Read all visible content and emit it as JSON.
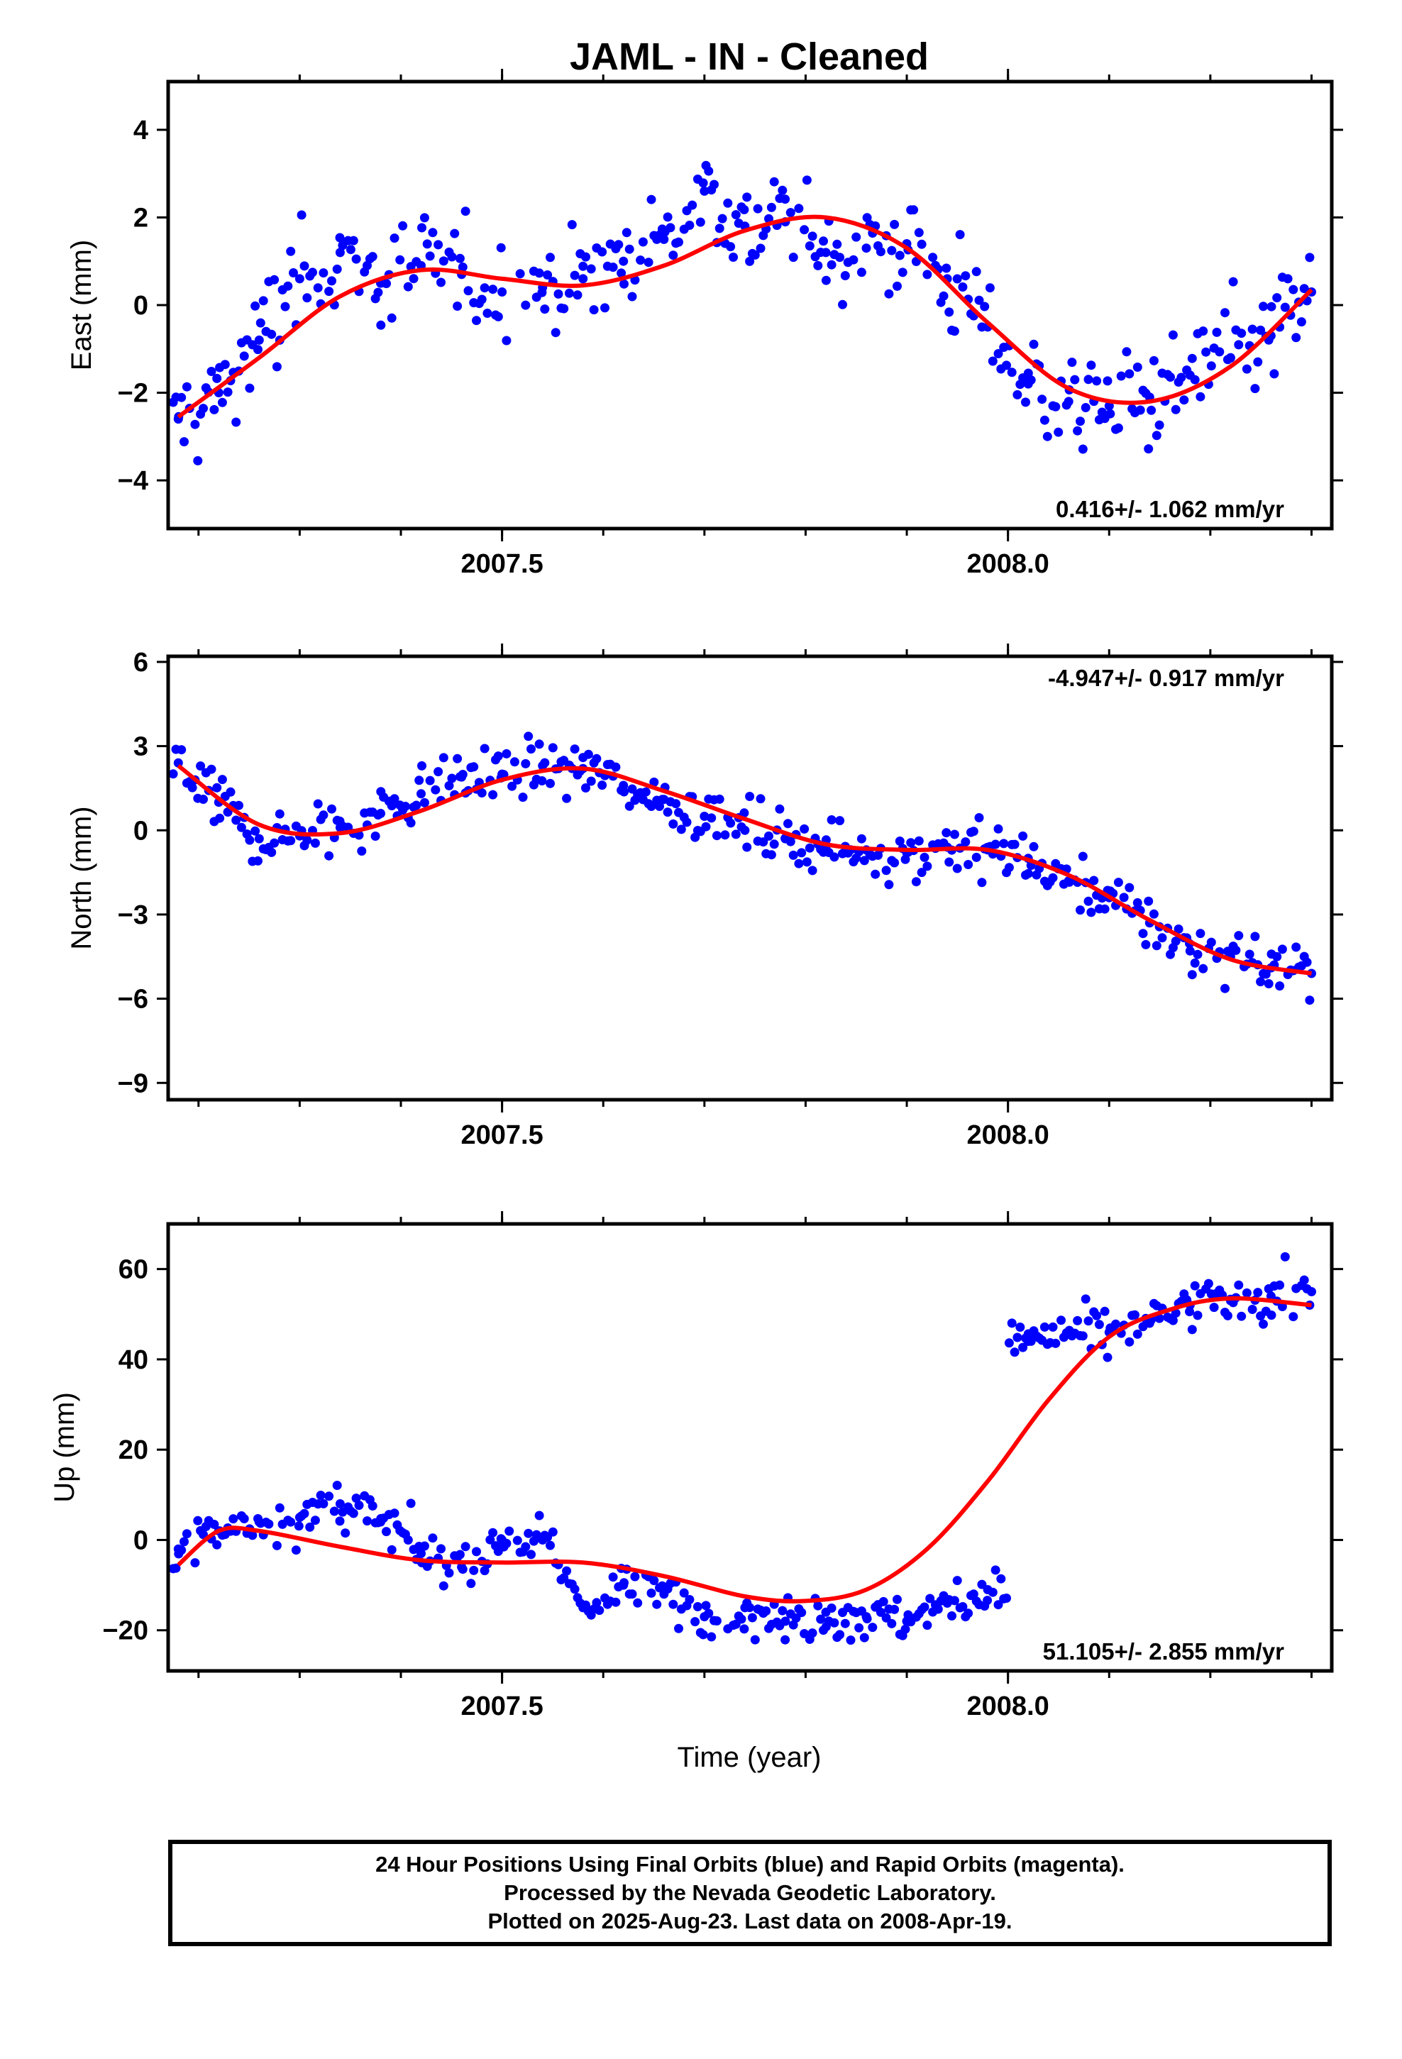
{
  "title": "JAML  - IN - Cleaned",
  "xlabel": "Time (year)",
  "caption": [
    "24 Hour Positions Using Final Orbits (blue) and Rapid Orbits (magenta).",
    "Processed by the Nevada Geodetic Laboratory.",
    "Plotted on 2025-Aug-23. Last data on 2008-Apr-19."
  ],
  "colors": {
    "points": "#0000ff",
    "fit": "#ff0000",
    "axes": "#000000"
  },
  "chart_data": [
    {
      "type": "scatter",
      "panel": "east",
      "ylabel": "East (mm)",
      "xlim": [
        2007.17,
        2008.32
      ],
      "ylim": [
        -5.1,
        5.1
      ],
      "x_ticks": [
        2007.5,
        2008.0
      ],
      "x_tick_labels": [
        "2007.5",
        "2008.0"
      ],
      "y_ticks": [
        -4,
        -2,
        0,
        2,
        4
      ],
      "y_tick_labels": [
        "−4",
        "−2",
        "0",
        "2",
        "4"
      ],
      "rate_text": "0.416+/- 1.062 mm/yr",
      "rate_position": "bottom-right",
      "series": [
        {
          "kind": "points",
          "x": [
            2007.18,
            2007.22,
            2007.26,
            2007.3,
            2007.34,
            2007.38,
            2007.42,
            2007.46,
            2007.5,
            2007.54,
            2007.58,
            2007.62,
            2007.66,
            2007.7,
            2007.74,
            2007.78,
            2007.82,
            2007.86,
            2007.9,
            2007.94,
            2007.98,
            2008.02,
            2008.06,
            2008.1,
            2008.14,
            2008.18,
            2008.22,
            2008.26,
            2008.3
          ],
          "y": [
            -2.6,
            -2.0,
            -0.8,
            0.6,
            1.2,
            0.5,
            0.9,
            0.7,
            0.3,
            0.4,
            0.6,
            1.0,
            1.5,
            2.6,
            1.8,
            1.9,
            1.2,
            1.3,
            1.4,
            0.6,
            -0.5,
            -1.8,
            -2.2,
            -2.3,
            -2.1,
            -1.6,
            -1.2,
            -0.7,
            0.3
          ]
        },
        {
          "kind": "fit",
          "x": [
            2007.18,
            2007.26,
            2007.34,
            2007.42,
            2007.5,
            2007.58,
            2007.66,
            2007.74,
            2007.82,
            2007.9,
            2007.98,
            2008.06,
            2008.14,
            2008.22,
            2008.3
          ],
          "y": [
            -2.55,
            -1.2,
            0.2,
            0.8,
            0.6,
            0.45,
            0.9,
            1.7,
            2.0,
            1.3,
            -0.4,
            -1.9,
            -2.2,
            -1.4,
            0.35
          ]
        }
      ]
    },
    {
      "type": "scatter",
      "panel": "north",
      "ylabel": "North (mm)",
      "xlim": [
        2007.17,
        2008.32
      ],
      "ylim": [
        -9.6,
        6.2
      ],
      "x_ticks": [
        2007.5,
        2008.0
      ],
      "x_tick_labels": [
        "2007.5",
        "2008.0"
      ],
      "y_ticks": [
        -9,
        -6,
        -3,
        0,
        3,
        6
      ],
      "y_tick_labels": [
        "−9",
        "−6",
        "−3",
        "0",
        "3",
        "6"
      ],
      "rate_text": "-4.947+/- 0.917 mm/yr",
      "rate_position": "top-right",
      "series": [
        {
          "kind": "points",
          "x": [
            2007.18,
            2007.22,
            2007.26,
            2007.3,
            2007.34,
            2007.38,
            2007.42,
            2007.46,
            2007.5,
            2007.54,
            2007.58,
            2007.62,
            2007.66,
            2007.7,
            2007.74,
            2007.78,
            2007.82,
            2007.86,
            2007.9,
            2007.94,
            2007.98,
            2008.02,
            2008.06,
            2008.1,
            2008.14,
            2008.18,
            2008.22,
            2008.26,
            2008.3
          ],
          "y": [
            2.4,
            1.0,
            -0.3,
            -0.2,
            0.1,
            0.6,
            1.3,
            1.9,
            2.0,
            2.3,
            2.2,
            1.6,
            1.1,
            0.5,
            0.0,
            -0.3,
            -0.6,
            -0.7,
            -0.8,
            -0.6,
            -0.7,
            -1.0,
            -1.8,
            -2.4,
            -3.3,
            -4.3,
            -4.5,
            -4.9,
            -5.1
          ]
        },
        {
          "kind": "fit",
          "x": [
            2007.18,
            2007.26,
            2007.34,
            2007.42,
            2007.5,
            2007.58,
            2007.66,
            2007.74,
            2007.82,
            2007.9,
            2007.98,
            2008.06,
            2008.14,
            2008.22,
            2008.3
          ],
          "y": [
            2.3,
            0.2,
            -0.1,
            0.7,
            1.8,
            2.2,
            1.4,
            0.4,
            -0.5,
            -0.7,
            -0.7,
            -1.6,
            -3.2,
            -4.6,
            -5.1
          ]
        }
      ]
    },
    {
      "type": "scatter",
      "panel": "up",
      "ylabel": "Up (mm)",
      "xlim": [
        2007.17,
        2008.32
      ],
      "ylim": [
        -29,
        70
      ],
      "x_ticks": [
        2007.5,
        2008.0
      ],
      "x_tick_labels": [
        "2007.5",
        "2008.0"
      ],
      "y_ticks": [
        -20,
        0,
        20,
        40,
        60
      ],
      "y_tick_labels": [
        "−20",
        "0",
        "20",
        "40",
        "60"
      ],
      "rate_text": "51.105+/- 2.855 mm/yr",
      "rate_position": "bottom-right",
      "series": [
        {
          "kind": "points",
          "x": [
            2007.18,
            2007.22,
            2007.26,
            2007.3,
            2007.34,
            2007.38,
            2007.42,
            2007.46,
            2007.5,
            2007.54,
            2007.58,
            2007.62,
            2007.66,
            2007.7,
            2007.74,
            2007.78,
            2007.82,
            2007.86,
            2007.9,
            2007.94,
            2007.98,
            2008.02,
            2008.06,
            2008.1,
            2008.14,
            2008.18,
            2008.22,
            2008.26,
            2008.3
          ],
          "y": [
            -2.0,
            2.0,
            4.0,
            5.0,
            8.0,
            4.0,
            -3.0,
            -6.0,
            0.0,
            0.0,
            -15.0,
            -10.0,
            -12.0,
            -17.0,
            -15.0,
            -18.0,
            -16.0,
            -17.0,
            -18.0,
            -14.0,
            -11.0,
            44.0,
            46.0,
            46.0,
            48.0,
            52.0,
            53.0,
            54.0,
            55.0
          ]
        },
        {
          "kind": "fit",
          "x": [
            2007.18,
            2007.22,
            2007.26,
            2007.34,
            2007.42,
            2007.5,
            2007.58,
            2007.66,
            2007.74,
            2007.8,
            2007.86,
            2007.92,
            2007.98,
            2008.04,
            2008.1,
            2008.16,
            2008.22,
            2008.3
          ],
          "y": [
            -5.5,
            2.0,
            2.0,
            -1.5,
            -4.5,
            -5.0,
            -5.0,
            -8.0,
            -12.5,
            -13.5,
            -11.0,
            -2.0,
            13.0,
            31.0,
            45.0,
            51.0,
            53.5,
            52.0
          ]
        }
      ]
    }
  ]
}
